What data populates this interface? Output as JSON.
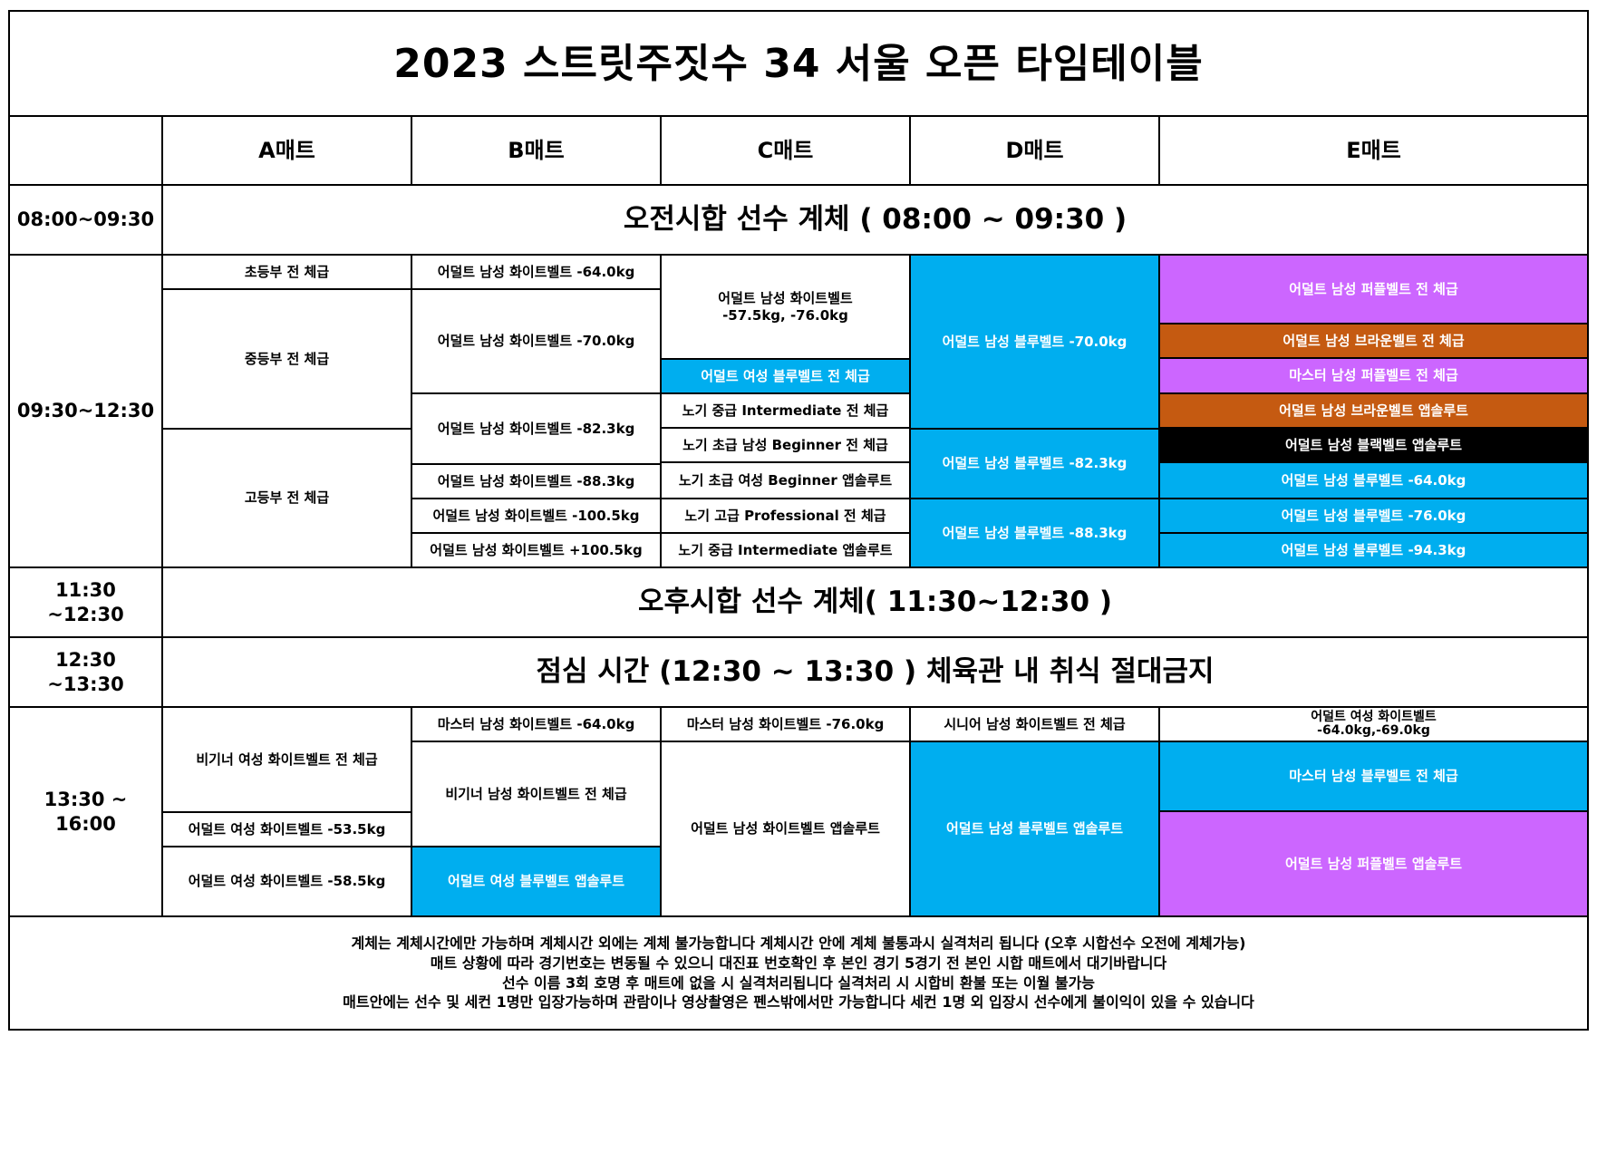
{
  "title": "2023 스트릿주짓수 34 서울 오픈 타임테이블",
  "mats": [
    "A매트",
    "B매트",
    "C매트",
    "D매트",
    "E매트"
  ],
  "times": {
    "t1": "08:00~09:30",
    "t2": "09:30~12:30",
    "t3": "11:30 ~12:30",
    "t4": "12:30 ~13:30",
    "t5": "13:30 ~ 16:00"
  },
  "banners": {
    "morning_weighin": "오전시합 선수 계체 ( 08:00 ~ 09:30 )",
    "afternoon_weighin": "오후시합 선수 계체( 11:30~12:30 )",
    "lunch": "점심 시간 (12:30 ~ 13:30 ) 체육관 내 취식 절대금지"
  },
  "colors": {
    "blue": "#00aeef",
    "purple": "#cc66ff",
    "brown": "#c55a11",
    "black": "#000000"
  },
  "morning": {
    "a": [
      "초등부 전 체급",
      "중등부 전 체급",
      "고등부 전 체급"
    ],
    "b": [
      "어덜트 남성 화이트벨트 -64.0kg",
      "어덜트 남성 화이트벨트 -70.0kg",
      "어덜트 남성 화이트벨트 -82.3kg",
      "어덜트 남성 화이트벨트 -88.3kg",
      "어덜트 남성 화이트벨트 -100.5kg",
      "어덜트 남성 화이트벨트 +100.5kg"
    ],
    "c": [
      "어덜트 남성 화이트벨트\n-57.5kg, -76.0kg",
      "어덜트 여성 블루벨트 전 체급",
      "노기 중급 Intermediate 전 체급",
      "노기 초급 남성 Beginner 전 체급",
      "노기 초급 여성 Beginner 앱솔루트",
      "노기 고급 Professional 전 체급",
      "노기 중급 Intermediate 앱솔루트"
    ],
    "d": [
      "어덜트 남성 블루벨트 -70.0kg",
      "어덜트 남성 블루벨트 -82.3kg",
      "어덜트 남성 블루벨트 -88.3kg"
    ],
    "e": [
      "어덜트 남성 퍼플벨트 전 체급",
      "어덜트 남성 브라운벨트 전 체급",
      "마스터 남성 퍼플벨트 전 체급",
      "어덜트 남성 브라운벨트 앱솔루트",
      "어덜트 남성 블랙벨트 앱솔루트",
      "어덜트 남성 블루벨트 -64.0kg",
      "어덜트 남성 블루벨트 -76.0kg",
      "어덜트 남성 블루벨트 -94.3kg"
    ]
  },
  "afternoon": {
    "a": [
      "비기너 여성 화이트벨트 전 체급",
      "어덜트 여성 화이트벨트 -53.5kg",
      "어덜트 여성 화이트벨트 -58.5kg"
    ],
    "b": [
      "마스터 남성 화이트벨트 -64.0kg",
      "비기너 남성 화이트벨트 전 체급",
      "어덜트 여성 블루벨트 앱솔루트"
    ],
    "c": [
      "마스터 남성 화이트벨트 -76.0kg",
      "어덜트 남성 화이트벨트 앱솔루트"
    ],
    "d": [
      "시니어 남성 화이트벨트 전 체급",
      "어덜트 남성 블루벨트 앱솔루트"
    ],
    "e": [
      "어덜트 여성 화이트벨트\n-64.0kg,-69.0kg",
      "마스터 남성 블루벨트 전 체급",
      "어덜트 남성 퍼플벨트 앱솔루트"
    ]
  },
  "footer": [
    "계체는 계체시간에만 가능하며 계체시간 외에는 계체 불가능합니다 계체시간 안에 계체 불통과시 실격처리 됩니다 (오후 시합선수 오전에 계체가능)",
    "매트 상황에 따라 경기번호는 변동될 수 있으니 대진표 번호확인 후 본인 경기 5경기 전 본인 시합 매트에서 대기바랍니다",
    "선수 이름 3회 호명 후 매트에 없을 시 실격처리됩니다 실격처리 시 시합비 환불 또는 이월 불가능",
    "매트안에는 선수 및 세컨 1명만 입장가능하며 관람이나 영상촬영은 펜스밖에서만 가능합니다 세컨 1명 외 입장시 선수에게 불이익이 있을 수 있습니다"
  ]
}
